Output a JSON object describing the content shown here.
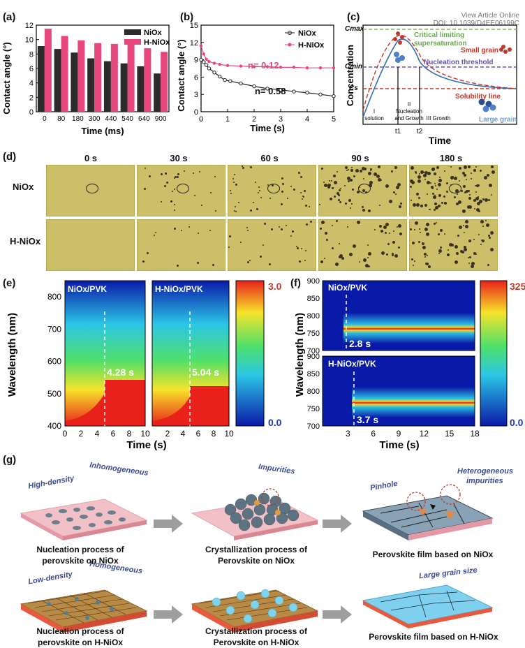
{
  "watermark": {
    "line1": "View Article Online",
    "line2": "DOI: 10.1039/D4EE06199C"
  },
  "labels": {
    "a": "(a)",
    "b": "(b)",
    "c": "(c)",
    "d": "(d)",
    "e": "(e)",
    "f": "(f)",
    "g": "(g)"
  },
  "colors": {
    "nio": "#2b2b2b",
    "hnio": "#e8467f",
    "heat_low": "#0a1aa8",
    "heat_high": "#e8211b"
  },
  "chart_data": [
    {
      "type": "bar",
      "title": "",
      "xlabel": "Time (ms)",
      "ylabel": "Contact angle (°)",
      "categories": [
        "0",
        "80",
        "180",
        "300",
        "440",
        "540",
        "640",
        "900"
      ],
      "ylim": [
        0,
        12
      ],
      "yticks": [
        0,
        2,
        4,
        6,
        8,
        10,
        12
      ],
      "series": [
        {
          "name": "NiOx",
          "values": [
            9.1,
            8.7,
            8.2,
            7.4,
            7.0,
            6.7,
            6.3,
            5.3
          ]
        },
        {
          "name": "H-NiOx",
          "values": [
            11.5,
            10.5,
            9.9,
            9.5,
            9.4,
            9.3,
            8.8,
            8.3
          ]
        }
      ],
      "legend": "top-right"
    },
    {
      "type": "scatter",
      "title": "",
      "xlabel": "Time (s)",
      "ylabel": "Contact angle (°)",
      "xlim": [
        0,
        5
      ],
      "ylim": [
        0,
        15
      ],
      "xticks": [
        0,
        1,
        2,
        3,
        4,
        5
      ],
      "yticks": [
        0,
        3,
        6,
        9,
        12,
        15
      ],
      "series": [
        {
          "name": "NiOx",
          "x": [
            0,
            0.1,
            0.2,
            0.3,
            0.5,
            0.7,
            0.9,
            1.1,
            1.5,
            2,
            2.5,
            3,
            3.5,
            4,
            4.5,
            5
          ],
          "y": [
            9.0,
            8.6,
            8.1,
            7.5,
            6.8,
            6.1,
            5.5,
            5.3,
            4.9,
            4.4,
            4.0,
            3.8,
            3.5,
            3.3,
            3.0,
            2.7
          ]
        },
        {
          "name": "H-NiOx",
          "x": [
            0,
            0.1,
            0.2,
            0.3,
            0.5,
            0.7,
            1,
            1.5,
            2,
            2.5,
            3,
            3.5,
            4,
            4.5,
            5
          ],
          "y": [
            11.4,
            10.0,
            9.1,
            8.7,
            8.4,
            8.2,
            8.0,
            7.9,
            7.8,
            7.8,
            7.7,
            7.7,
            7.6,
            7.6,
            7.6
          ]
        }
      ],
      "annotations": [
        "n= 0.12",
        "n= 0.58"
      ],
      "legend": "top-right"
    },
    {
      "type": "line",
      "title": "",
      "xlabel": "Time",
      "ylabel": "Concentration",
      "y_markers": [
        "Cmax",
        "Cmin",
        "Cs"
      ],
      "x_markers": [
        "t1",
        "t2"
      ],
      "annotations": [
        "Critical limiting supersaturation",
        "Small grain",
        "Nucleation threshold",
        "Solubility line",
        "Large grain"
      ],
      "stages": [
        "I solution",
        "II Nucleation and Growth",
        "III Growth"
      ]
    },
    {
      "type": "heatmap",
      "title": "",
      "xlabel": "Time (s)",
      "ylabel": "Wavelength (nm)",
      "xlim": [
        0,
        10
      ],
      "ylim": [
        400,
        850
      ],
      "xticks": [
        0,
        2,
        4,
        6,
        8,
        10
      ],
      "yticks": [
        400,
        500,
        600,
        700,
        800
      ],
      "colorbar": {
        "min": "0.0",
        "max": "3.0"
      },
      "panels": [
        {
          "name": "NiOx/PVK",
          "marker": "4.28 s",
          "marker_x": 4.28
        },
        {
          "name": "H-NiOx/PVK",
          "marker": "5.04 s",
          "marker_x": 5.04
        }
      ]
    },
    {
      "type": "heatmap",
      "title": "",
      "xlabel": "Time (s)",
      "ylabel": "Wavelength (nm)",
      "xlim": [
        0,
        18
      ],
      "ylim": [
        700,
        900
      ],
      "xticks": [
        3,
        6,
        9,
        12,
        15,
        18
      ],
      "yticks": [
        700,
        750,
        800,
        850,
        900
      ],
      "colorbar": {
        "min": "0.0",
        "max": "325"
      },
      "panels": [
        {
          "name": "NiOx/PVK",
          "marker": "2.8 s",
          "marker_x": 2.8
        },
        {
          "name": "H-NiOx/PVK",
          "marker": "3.7 s",
          "marker_x": 3.7
        }
      ]
    }
  ],
  "panel_a": {
    "xlabel": "Time (ms)",
    "ylabel": "Contact angle (°)",
    "leg1": "NiOx",
    "leg2": "H-NiOx",
    "ticks_y": [
      "0",
      "2",
      "4",
      "6",
      "8",
      "10",
      "12"
    ],
    "ticks_x": [
      "0",
      "80",
      "180",
      "300",
      "440",
      "540",
      "640",
      "900"
    ]
  },
  "panel_b": {
    "xlabel": "Time (s)",
    "ylabel": "Contact angle (°)",
    "leg1": "NiOx",
    "leg2": "H-NiOx",
    "n1": "n= 0.12",
    "n2": "n= 0.58",
    "ticks_y": [
      "0",
      "3",
      "6",
      "9",
      "12",
      "15"
    ],
    "ticks_x": [
      "0",
      "1",
      "2",
      "3",
      "4",
      "5"
    ]
  },
  "panel_c": {
    "xlabel": "Time",
    "ylabel": "Concentration",
    "cmax": "Cmax",
    "cmin": "Cmin",
    "cs": "Cs",
    "t1": "t1",
    "t2": "t2",
    "critical": "Critical limiting",
    "supersat": "supersaturation",
    "small": "Small grain",
    "nucleation": "Nucleation threshold",
    "solubility": "Solubility line",
    "large": "Large grain",
    "stage1a": "I",
    "stage1b": "solution",
    "stage2a": "II",
    "stage2b": "Nucleation",
    "stage2c": "and Growth",
    "stage3": "III Growth"
  },
  "panel_d": {
    "times": [
      "0 s",
      "30 s",
      "60 s",
      "90 s",
      "180 s"
    ],
    "row1": "NiOx",
    "row2": "H-NiOx"
  },
  "panel_e": {
    "label1": "NiOx/PVK",
    "label2": "H-NiOx/PVK",
    "marker1": "4.28 s",
    "marker2": "5.04 s",
    "cb_max": "3.0",
    "cb_min": "0.0",
    "xlabel": "Time (s)",
    "ylabel": "Wavelength (nm)",
    "ticks_y": [
      "400",
      "500",
      "600",
      "700",
      "800"
    ],
    "ticks_x": [
      "0",
      "2",
      "4",
      "6",
      "8",
      "10"
    ]
  },
  "panel_f": {
    "label1": "NiOx/PVK",
    "label2": "H-NiOx/PVK",
    "marker1": "2.8 s",
    "marker2": "3.7 s",
    "cb_max": "325",
    "cb_min": "0.0",
    "xlabel": "Time (s)",
    "ylabel": "Wavelength (nm)",
    "ticks_y": [
      "900",
      "850",
      "800",
      "750",
      "700"
    ],
    "ticks_x": [
      "3",
      "6",
      "9",
      "12",
      "15",
      "18"
    ]
  },
  "panel_g": {
    "top_notes": [
      "High-density",
      "Inhomogeneous",
      "Impurities",
      "Pinhole",
      "Heterogeneous",
      "impurities"
    ],
    "bottom_notes": [
      "Low-density",
      "Homogeneous",
      "Large grain size"
    ],
    "cap_top": [
      "Nucleation process of",
      "perovskite on NiOx",
      "Crystallization process of",
      "Perovskite on NiOx",
      "Perovskite film based on NiOx"
    ],
    "cap_bottom": [
      "Nucleation process of",
      "perovskite on H-NiOx",
      "Crystallization process of",
      "Perovskite on H-NiOx",
      "Perovskite film based on H-NiOx"
    ]
  }
}
